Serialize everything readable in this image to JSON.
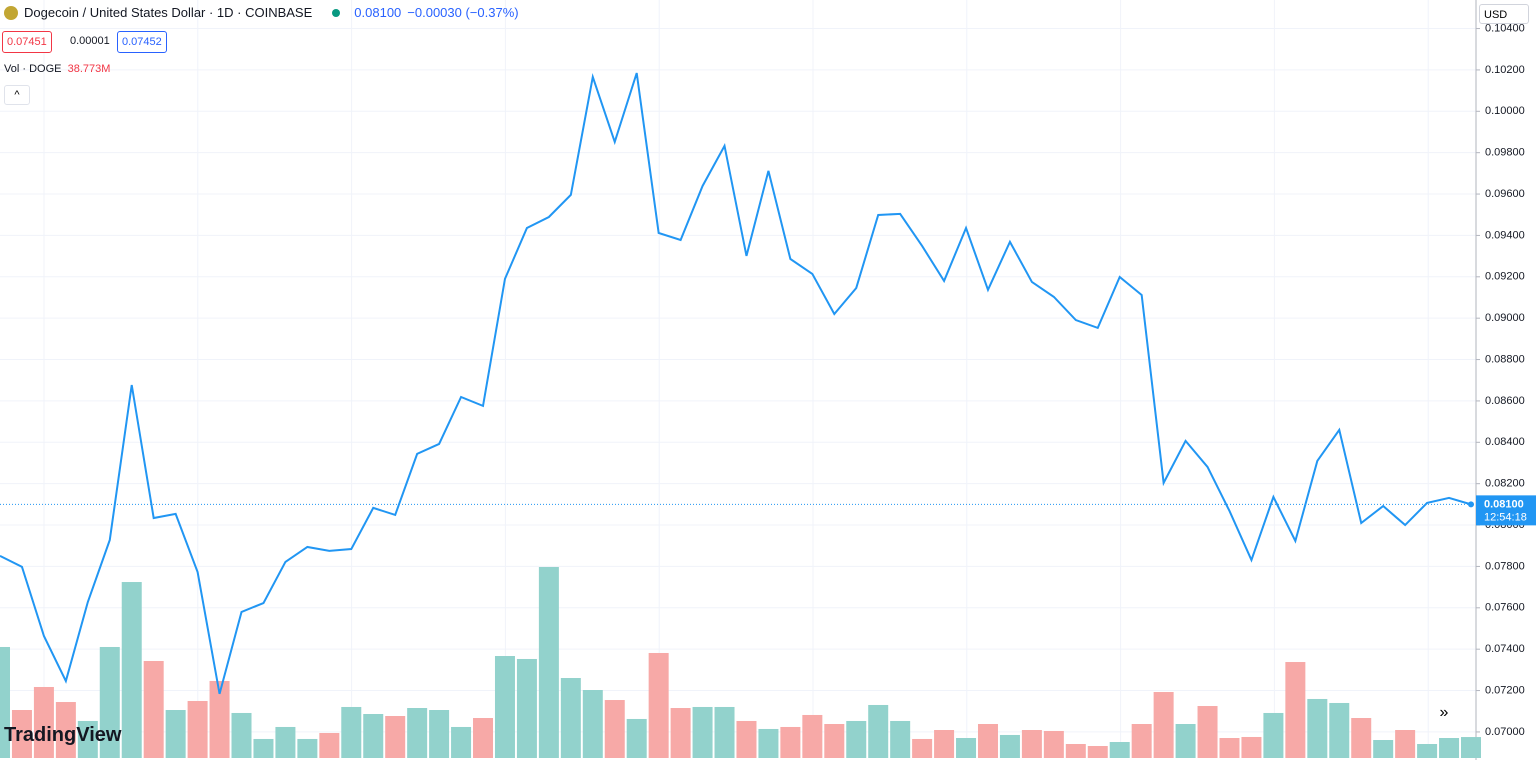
{
  "header": {
    "title": "Dogecoin / United States Dollar · 1D · COINBASE",
    "last": "0.08100",
    "change": "−0.00030 (−0.37%)",
    "bid": "0.07451",
    "spread": "0.00001",
    "ask": "0.07452",
    "currency": "USD",
    "brand": "TradingView"
  },
  "chart_data": {
    "type": "line",
    "series": [
      {
        "name": "DOGEUSD",
        "color": "#2196f3",
        "values": [
          0.07851,
          0.07798,
          0.07464,
          0.07246,
          0.07628,
          0.07928,
          0.08677,
          0.08034,
          0.08054,
          0.07773,
          0.07184,
          0.0758,
          0.07623,
          0.07822,
          0.07894,
          0.07875,
          0.07884,
          0.08083,
          0.08049,
          0.08344,
          0.08392,
          0.08619,
          0.08576,
          0.0919,
          0.09436,
          0.09489,
          0.09596,
          0.10166,
          0.09852,
          0.10185,
          0.09412,
          0.09378,
          0.09639,
          0.09833,
          0.09301,
          0.09712,
          0.09286,
          0.09214,
          0.0902,
          0.09146,
          0.09499,
          0.09504,
          0.09349,
          0.0918,
          0.09436,
          0.09137,
          0.09369,
          0.09175,
          0.09103,
          0.08991,
          0.08953,
          0.09199,
          0.09112,
          0.08204,
          0.08407,
          0.08281,
          0.08068,
          0.07831,
          0.08136,
          0.07923,
          0.0831,
          0.0846,
          0.0801,
          0.08092,
          0.08,
          0.08107,
          0.08131,
          0.081
        ]
      }
    ],
    "volume": {
      "name": "Vol · DOGE",
      "last_label": "38.773M",
      "up_color": "#92d2cc",
      "down_color": "#f7a9a7",
      "values": [
        205.4,
        88.8,
        131.4,
        103.6,
        68.5,
        205.4,
        325.6,
        179.5,
        88.8,
        105.5,
        142.5,
        83.3,
        35.2,
        57.4,
        35.2,
        46.3,
        94.4,
        81.4,
        77.7,
        92.5,
        88.8,
        57.4,
        74,
        188.7,
        183.2,
        353.4,
        148,
        125.8,
        107.3,
        72.2,
        194.3,
        92.5,
        94.4,
        94.4,
        68.5,
        53.7,
        57.4,
        79.6,
        62.9,
        68.5,
        98.1,
        68.5,
        35.2,
        51.8,
        37,
        62.9,
        42.6,
        51.8,
        50,
        25.9,
        22.2,
        29.6,
        62.9,
        122.1,
        62.9,
        96.2,
        37,
        38.9,
        83.3,
        177.6,
        109.2,
        101.8,
        74,
        33.3,
        51.8,
        25.9,
        37,
        38.773
      ],
      "up": [
        true,
        false,
        false,
        false,
        true,
        true,
        true,
        false,
        true,
        false,
        false,
        true,
        true,
        true,
        true,
        false,
        true,
        true,
        false,
        true,
        true,
        true,
        false,
        true,
        true,
        true,
        true,
        true,
        false,
        true,
        false,
        false,
        true,
        true,
        false,
        true,
        false,
        false,
        false,
        true,
        true,
        true,
        false,
        false,
        true,
        false,
        true,
        false,
        false,
        false,
        false,
        true,
        false,
        false,
        true,
        false,
        false,
        false,
        true,
        false,
        true,
        true,
        false,
        true,
        false,
        true,
        true,
        true
      ]
    },
    "ylim": [
      0.06874,
      0.10538
    ],
    "yticks": [
      {
        "value": 0.07,
        "label": "0.07000"
      },
      {
        "value": 0.072,
        "label": "0.07200"
      },
      {
        "value": 0.074,
        "label": "0.07400"
      },
      {
        "value": 0.076,
        "label": "0.07600"
      },
      {
        "value": 0.078,
        "label": "0.07800"
      },
      {
        "value": 0.08,
        "label": "0.08000"
      },
      {
        "value": 0.082,
        "label": "0.08200"
      },
      {
        "value": 0.084,
        "label": "0.08400"
      },
      {
        "value": 0.086,
        "label": "0.08600"
      },
      {
        "value": 0.088,
        "label": "0.08800"
      },
      {
        "value": 0.09,
        "label": "0.09000"
      },
      {
        "value": 0.092,
        "label": "0.09200"
      },
      {
        "value": 0.094,
        "label": "0.09400"
      },
      {
        "value": 0.096,
        "label": "0.09600"
      },
      {
        "value": 0.098,
        "label": "0.09800"
      },
      {
        "value": 0.1,
        "label": "0.10000"
      },
      {
        "value": 0.102,
        "label": "0.10200"
      },
      {
        "value": 0.104,
        "label": "0.10400"
      }
    ],
    "grid": true,
    "last_price": {
      "value": 0.081,
      "label": "0.08100",
      "countdown": "12:54:18"
    }
  }
}
